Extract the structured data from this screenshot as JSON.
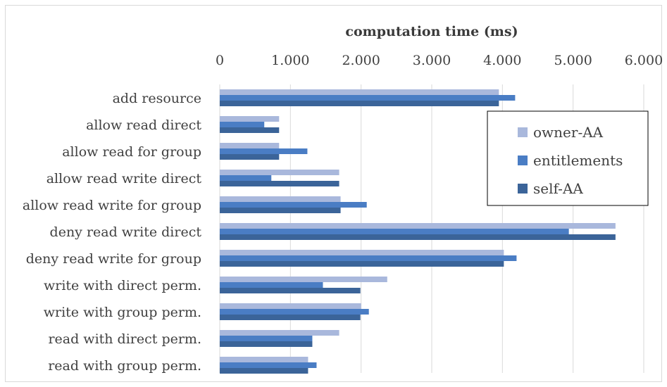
{
  "chart_data": {
    "type": "bar",
    "orientation": "horizontal",
    "xlabel": "computation time (ms)",
    "xlabel_position": "top",
    "xlim": [
      0,
      6000
    ],
    "ticks": [
      0,
      1000,
      2000,
      3000,
      4000,
      5000,
      6000
    ],
    "tick_labels": [
      "0",
      "1.000",
      "2.000",
      "3.000",
      "4.000",
      "5.000",
      "6.000"
    ],
    "grid": true,
    "legend": "right",
    "categories": [
      "add resource",
      "allow read direct",
      "allow read for group",
      "allow read write direct",
      "allow read write for group",
      "deny read write direct",
      "deny read write for group",
      "write with direct perm.",
      "write with group perm.",
      "read with direct perm.",
      "read with group perm."
    ],
    "series": [
      {
        "name": "owner-AA",
        "color": "#a9b8dc",
        "values": [
          3950,
          840,
          840,
          1690,
          1710,
          5600,
          4020,
          2370,
          2000,
          1690,
          1250
        ]
      },
      {
        "name": "entitlements",
        "color": "#4a7dc4",
        "values": [
          4180,
          630,
          1240,
          730,
          2080,
          4940,
          4200,
          1460,
          2110,
          1310,
          1370
        ]
      },
      {
        "name": "self-AA",
        "color": "#3b6499",
        "values": [
          3950,
          840,
          840,
          1690,
          1710,
          5600,
          4020,
          1990,
          1990,
          1310,
          1250
        ]
      }
    ]
  }
}
